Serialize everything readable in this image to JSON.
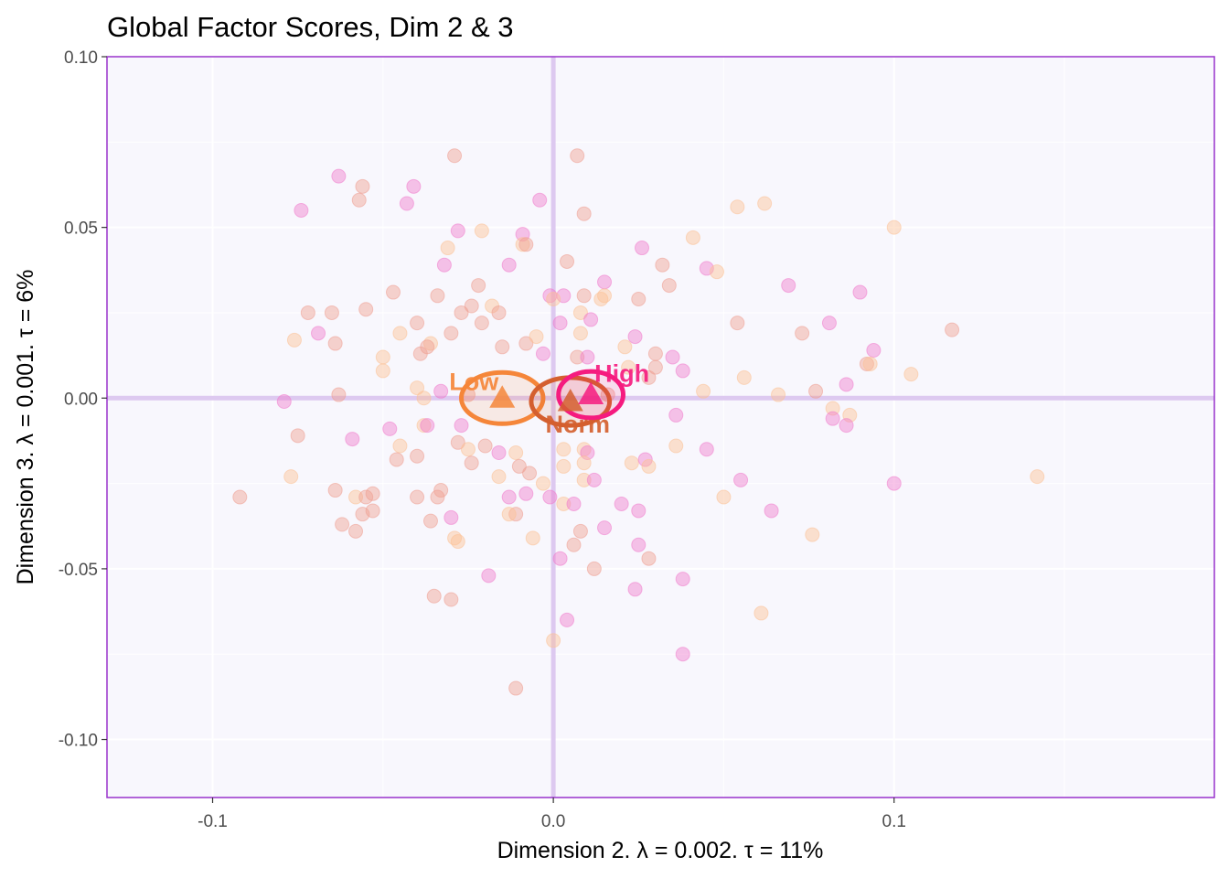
{
  "chart_data": {
    "type": "scatter",
    "title": "Global Factor Scores, Dim 2 & 3",
    "xlabel": "Dimension 2.   λ = 0.002.  τ = 11%",
    "ylabel": "Dimension 3.   λ = 0.001.  τ = 6%",
    "xlim": [
      -0.131,
      0.194
    ],
    "ylim": [
      -0.117,
      0.1
    ],
    "x_ticks": [
      -0.1,
      0.0,
      0.1
    ],
    "x_tick_labels": [
      "-0.1",
      "0.0",
      "0.1"
    ],
    "y_ticks": [
      0.1,
      0.05,
      0.0,
      -0.05,
      -0.1
    ],
    "y_tick_labels": [
      "0.10",
      "0.05",
      "0.00",
      "-0.05",
      "-0.10"
    ],
    "grid": true,
    "colors": {
      "background": "#f8f7fd",
      "frame": "#9932cc",
      "origin_lines": "#ddc9f0",
      "low": "#f5863a",
      "norm": "#d45f2f",
      "high": "#f51b7f",
      "point_light": "#fcc195",
      "point_mid": "#ef9f91",
      "point_pink": "#f07ccc"
    },
    "groups": [
      {
        "name": "Low",
        "mean": [
          -0.015,
          0.0
        ],
        "ellipse_radius": [
          0.012,
          0.0075
        ],
        "color": "#f5863a"
      },
      {
        "name": "Norm",
        "mean": [
          0.005,
          -0.001
        ],
        "ellipse_radius": [
          0.0115,
          0.007
        ],
        "color": "#d45f2f"
      },
      {
        "name": "High",
        "mean": [
          0.011,
          0.001
        ],
        "ellipse_radius": [
          0.0095,
          0.0068
        ],
        "color": "#f51b7f"
      }
    ],
    "points": [
      {
        "x": -0.063,
        "y": 0.065,
        "c": "pink"
      },
      {
        "x": -0.056,
        "y": 0.062,
        "c": "mid"
      },
      {
        "x": -0.041,
        "y": 0.062,
        "c": "pink"
      },
      {
        "x": -0.029,
        "y": 0.071,
        "c": "mid"
      },
      {
        "x": 0.007,
        "y": 0.071,
        "c": "mid"
      },
      {
        "x": -0.074,
        "y": 0.055,
        "c": "pink"
      },
      {
        "x": -0.057,
        "y": 0.058,
        "c": "mid"
      },
      {
        "x": -0.043,
        "y": 0.057,
        "c": "pink"
      },
      {
        "x": -0.004,
        "y": 0.058,
        "c": "pink"
      },
      {
        "x": 0.009,
        "y": 0.054,
        "c": "mid"
      },
      {
        "x": -0.028,
        "y": 0.049,
        "c": "pink"
      },
      {
        "x": -0.021,
        "y": 0.049,
        "c": "light"
      },
      {
        "x": -0.009,
        "y": 0.048,
        "c": "pink"
      },
      {
        "x": -0.009,
        "y": 0.045,
        "c": "light"
      },
      {
        "x": -0.008,
        "y": 0.045,
        "c": "mid"
      },
      {
        "x": -0.031,
        "y": 0.044,
        "c": "light"
      },
      {
        "x": 0.026,
        "y": 0.044,
        "c": "pink"
      },
      {
        "x": 0.041,
        "y": 0.047,
        "c": "light"
      },
      {
        "x": 0.054,
        "y": 0.056,
        "c": "light"
      },
      {
        "x": 0.062,
        "y": 0.057,
        "c": "light"
      },
      {
        "x": 0.1,
        "y": 0.05,
        "c": "light"
      },
      {
        "x": -0.032,
        "y": 0.039,
        "c": "pink"
      },
      {
        "x": -0.013,
        "y": 0.039,
        "c": "pink"
      },
      {
        "x": 0.004,
        "y": 0.04,
        "c": "mid"
      },
      {
        "x": 0.015,
        "y": 0.034,
        "c": "pink"
      },
      {
        "x": 0.032,
        "y": 0.039,
        "c": "mid"
      },
      {
        "x": 0.045,
        "y": 0.038,
        "c": "pink"
      },
      {
        "x": 0.048,
        "y": 0.037,
        "c": "light"
      },
      {
        "x": 0.034,
        "y": 0.033,
        "c": "mid"
      },
      {
        "x": 0.025,
        "y": 0.029,
        "c": "mid"
      },
      {
        "x": 0.069,
        "y": 0.033,
        "c": "pink"
      },
      {
        "x": 0.09,
        "y": 0.031,
        "c": "pink"
      },
      {
        "x": -0.047,
        "y": 0.031,
        "c": "mid"
      },
      {
        "x": -0.034,
        "y": 0.03,
        "c": "mid"
      },
      {
        "x": -0.022,
        "y": 0.033,
        "c": "mid"
      },
      {
        "x": -0.001,
        "y": 0.03,
        "c": "pink"
      },
      {
        "x": 0.003,
        "y": 0.03,
        "c": "pink"
      },
      {
        "x": 0.009,
        "y": 0.03,
        "c": "mid"
      },
      {
        "x": 0.014,
        "y": 0.029,
        "c": "light"
      },
      {
        "x": 0.015,
        "y": 0.03,
        "c": "light"
      },
      {
        "x": -0.072,
        "y": 0.025,
        "c": "mid"
      },
      {
        "x": -0.065,
        "y": 0.025,
        "c": "mid"
      },
      {
        "x": -0.055,
        "y": 0.026,
        "c": "mid"
      },
      {
        "x": -0.024,
        "y": 0.027,
        "c": "mid"
      },
      {
        "x": -0.018,
        "y": 0.027,
        "c": "light"
      },
      {
        "x": -0.016,
        "y": 0.025,
        "c": "mid"
      },
      {
        "x": -0.027,
        "y": 0.025,
        "c": "mid"
      },
      {
        "x": 0.0,
        "y": 0.029,
        "c": "light"
      },
      {
        "x": 0.008,
        "y": 0.025,
        "c": "light"
      },
      {
        "x": -0.04,
        "y": 0.022,
        "c": "mid"
      },
      {
        "x": -0.021,
        "y": 0.022,
        "c": "mid"
      },
      {
        "x": 0.002,
        "y": 0.022,
        "c": "pink"
      },
      {
        "x": 0.011,
        "y": 0.023,
        "c": "pink"
      },
      {
        "x": 0.008,
        "y": 0.019,
        "c": "light"
      },
      {
        "x": 0.024,
        "y": 0.018,
        "c": "pink"
      },
      {
        "x": 0.054,
        "y": 0.022,
        "c": "mid"
      },
      {
        "x": 0.073,
        "y": 0.019,
        "c": "mid"
      },
      {
        "x": 0.081,
        "y": 0.022,
        "c": "pink"
      },
      {
        "x": 0.117,
        "y": 0.02,
        "c": "mid"
      },
      {
        "x": -0.069,
        "y": 0.019,
        "c": "pink"
      },
      {
        "x": -0.076,
        "y": 0.017,
        "c": "light"
      },
      {
        "x": -0.064,
        "y": 0.016,
        "c": "mid"
      },
      {
        "x": -0.045,
        "y": 0.019,
        "c": "light"
      },
      {
        "x": -0.03,
        "y": 0.019,
        "c": "mid"
      },
      {
        "x": -0.015,
        "y": 0.015,
        "c": "mid"
      },
      {
        "x": -0.008,
        "y": 0.016,
        "c": "mid"
      },
      {
        "x": -0.005,
        "y": 0.018,
        "c": "light"
      },
      {
        "x": -0.036,
        "y": 0.016,
        "c": "light"
      },
      {
        "x": -0.037,
        "y": 0.015,
        "c": "mid"
      },
      {
        "x": -0.039,
        "y": 0.013,
        "c": "mid"
      },
      {
        "x": -0.05,
        "y": 0.012,
        "c": "light"
      },
      {
        "x": -0.05,
        "y": 0.008,
        "c": "light"
      },
      {
        "x": -0.003,
        "y": 0.013,
        "c": "pink"
      },
      {
        "x": 0.007,
        "y": 0.012,
        "c": "mid"
      },
      {
        "x": 0.01,
        "y": 0.012,
        "c": "pink"
      },
      {
        "x": 0.021,
        "y": 0.015,
        "c": "light"
      },
      {
        "x": 0.03,
        "y": 0.013,
        "c": "mid"
      },
      {
        "x": 0.035,
        "y": 0.012,
        "c": "pink"
      },
      {
        "x": 0.038,
        "y": 0.008,
        "c": "pink"
      },
      {
        "x": 0.03,
        "y": 0.009,
        "c": "mid"
      },
      {
        "x": 0.056,
        "y": 0.006,
        "c": "light"
      },
      {
        "x": 0.092,
        "y": 0.01,
        "c": "mid"
      },
      {
        "x": 0.094,
        "y": 0.014,
        "c": "pink"
      },
      {
        "x": 0.093,
        "y": 0.01,
        "c": "light"
      },
      {
        "x": 0.086,
        "y": 0.004,
        "c": "pink"
      },
      {
        "x": 0.105,
        "y": 0.007,
        "c": "light"
      },
      {
        "x": 0.028,
        "y": 0.006,
        "c": "mid"
      },
      {
        "x": 0.022,
        "y": 0.009,
        "c": "light"
      },
      {
        "x": -0.033,
        "y": 0.002,
        "c": "pink"
      },
      {
        "x": -0.04,
        "y": 0.003,
        "c": "light"
      },
      {
        "x": -0.038,
        "y": 0.0,
        "c": "light"
      },
      {
        "x": -0.063,
        "y": 0.001,
        "c": "mid"
      },
      {
        "x": -0.079,
        "y": -0.001,
        "c": "pink"
      },
      {
        "x": -0.025,
        "y": 0.001,
        "c": "mid"
      },
      {
        "x": 0.016,
        "y": 0.001,
        "c": "mid"
      },
      {
        "x": 0.044,
        "y": 0.002,
        "c": "light"
      },
      {
        "x": 0.066,
        "y": 0.001,
        "c": "light"
      },
      {
        "x": 0.077,
        "y": 0.002,
        "c": "mid"
      },
      {
        "x": -0.075,
        "y": -0.011,
        "c": "mid"
      },
      {
        "x": -0.059,
        "y": -0.012,
        "c": "pink"
      },
      {
        "x": -0.048,
        "y": -0.009,
        "c": "pink"
      },
      {
        "x": -0.038,
        "y": -0.008,
        "c": "light"
      },
      {
        "x": -0.037,
        "y": -0.008,
        "c": "pink"
      },
      {
        "x": -0.027,
        "y": -0.008,
        "c": "pink"
      },
      {
        "x": -0.028,
        "y": -0.013,
        "c": "mid"
      },
      {
        "x": -0.025,
        "y": -0.015,
        "c": "light"
      },
      {
        "x": -0.02,
        "y": -0.014,
        "c": "mid"
      },
      {
        "x": -0.016,
        "y": -0.016,
        "c": "pink"
      },
      {
        "x": -0.011,
        "y": -0.016,
        "c": "light"
      },
      {
        "x": -0.045,
        "y": -0.014,
        "c": "light"
      },
      {
        "x": -0.046,
        "y": -0.018,
        "c": "mid"
      },
      {
        "x": -0.04,
        "y": -0.017,
        "c": "mid"
      },
      {
        "x": -0.024,
        "y": -0.019,
        "c": "mid"
      },
      {
        "x": -0.016,
        "y": -0.023,
        "c": "light"
      },
      {
        "x": -0.01,
        "y": -0.02,
        "c": "mid"
      },
      {
        "x": -0.007,
        "y": -0.022,
        "c": "mid"
      },
      {
        "x": -0.003,
        "y": -0.025,
        "c": "light"
      },
      {
        "x": 0.003,
        "y": -0.015,
        "c": "light"
      },
      {
        "x": 0.009,
        "y": -0.015,
        "c": "light"
      },
      {
        "x": 0.01,
        "y": -0.016,
        "c": "pink"
      },
      {
        "x": 0.009,
        "y": -0.019,
        "c": "light"
      },
      {
        "x": 0.003,
        "y": -0.02,
        "c": "light"
      },
      {
        "x": 0.009,
        "y": -0.024,
        "c": "light"
      },
      {
        "x": 0.012,
        "y": -0.024,
        "c": "pink"
      },
      {
        "x": 0.023,
        "y": -0.019,
        "c": "light"
      },
      {
        "x": 0.027,
        "y": -0.018,
        "c": "pink"
      },
      {
        "x": 0.028,
        "y": -0.02,
        "c": "light"
      },
      {
        "x": 0.036,
        "y": -0.014,
        "c": "light"
      },
      {
        "x": 0.045,
        "y": -0.015,
        "c": "pink"
      },
      {
        "x": 0.036,
        "y": -0.005,
        "c": "pink"
      },
      {
        "x": 0.082,
        "y": -0.003,
        "c": "light"
      },
      {
        "x": 0.082,
        "y": -0.006,
        "c": "pink"
      },
      {
        "x": 0.087,
        "y": -0.005,
        "c": "light"
      },
      {
        "x": 0.086,
        "y": -0.008,
        "c": "pink"
      },
      {
        "x": -0.077,
        "y": -0.023,
        "c": "light"
      },
      {
        "x": -0.092,
        "y": -0.029,
        "c": "mid"
      },
      {
        "x": -0.064,
        "y": -0.027,
        "c": "mid"
      },
      {
        "x": -0.058,
        "y": -0.029,
        "c": "light"
      },
      {
        "x": -0.055,
        "y": -0.029,
        "c": "mid"
      },
      {
        "x": -0.053,
        "y": -0.028,
        "c": "mid"
      },
      {
        "x": -0.056,
        "y": -0.034,
        "c": "mid"
      },
      {
        "x": -0.053,
        "y": -0.033,
        "c": "mid"
      },
      {
        "x": -0.062,
        "y": -0.037,
        "c": "mid"
      },
      {
        "x": -0.058,
        "y": -0.039,
        "c": "mid"
      },
      {
        "x": -0.033,
        "y": -0.027,
        "c": "mid"
      },
      {
        "x": -0.034,
        "y": -0.029,
        "c": "mid"
      },
      {
        "x": -0.04,
        "y": -0.029,
        "c": "mid"
      },
      {
        "x": -0.036,
        "y": -0.036,
        "c": "mid"
      },
      {
        "x": -0.03,
        "y": -0.035,
        "c": "pink"
      },
      {
        "x": -0.029,
        "y": -0.041,
        "c": "light"
      },
      {
        "x": -0.028,
        "y": -0.042,
        "c": "light"
      },
      {
        "x": -0.013,
        "y": -0.029,
        "c": "pink"
      },
      {
        "x": -0.008,
        "y": -0.028,
        "c": "pink"
      },
      {
        "x": -0.011,
        "y": -0.034,
        "c": "mid"
      },
      {
        "x": -0.013,
        "y": -0.034,
        "c": "light"
      },
      {
        "x": -0.006,
        "y": -0.041,
        "c": "light"
      },
      {
        "x": -0.001,
        "y": -0.029,
        "c": "pink"
      },
      {
        "x": 0.003,
        "y": -0.031,
        "c": "light"
      },
      {
        "x": 0.006,
        "y": -0.031,
        "c": "pink"
      },
      {
        "x": 0.02,
        "y": -0.031,
        "c": "pink"
      },
      {
        "x": 0.025,
        "y": -0.033,
        "c": "pink"
      },
      {
        "x": 0.015,
        "y": -0.038,
        "c": "pink"
      },
      {
        "x": 0.008,
        "y": -0.039,
        "c": "mid"
      },
      {
        "x": 0.006,
        "y": -0.043,
        "c": "mid"
      },
      {
        "x": 0.002,
        "y": -0.047,
        "c": "pink"
      },
      {
        "x": 0.012,
        "y": -0.05,
        "c": "mid"
      },
      {
        "x": 0.025,
        "y": -0.043,
        "c": "pink"
      },
      {
        "x": 0.028,
        "y": -0.047,
        "c": "mid"
      },
      {
        "x": 0.05,
        "y": -0.029,
        "c": "light"
      },
      {
        "x": 0.055,
        "y": -0.024,
        "c": "pink"
      },
      {
        "x": 0.064,
        "y": -0.033,
        "c": "pink"
      },
      {
        "x": 0.076,
        "y": -0.04,
        "c": "light"
      },
      {
        "x": 0.1,
        "y": -0.025,
        "c": "pink"
      },
      {
        "x": 0.142,
        "y": -0.023,
        "c": "light"
      },
      {
        "x": -0.019,
        "y": -0.052,
        "c": "pink"
      },
      {
        "x": -0.035,
        "y": -0.058,
        "c": "mid"
      },
      {
        "x": -0.03,
        "y": -0.059,
        "c": "mid"
      },
      {
        "x": 0.024,
        "y": -0.056,
        "c": "pink"
      },
      {
        "x": 0.038,
        "y": -0.053,
        "c": "pink"
      },
      {
        "x": 0.061,
        "y": -0.063,
        "c": "light"
      },
      {
        "x": 0.004,
        "y": -0.065,
        "c": "pink"
      },
      {
        "x": 0.0,
        "y": -0.071,
        "c": "light"
      },
      {
        "x": 0.038,
        "y": -0.075,
        "c": "pink"
      },
      {
        "x": -0.011,
        "y": -0.085,
        "c": "mid"
      }
    ]
  }
}
